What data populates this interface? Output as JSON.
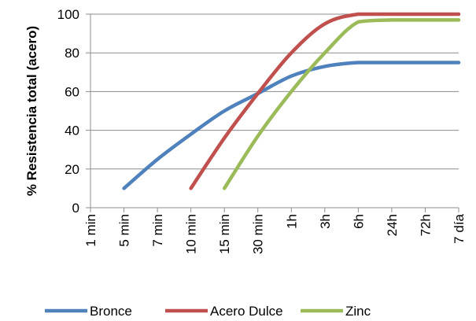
{
  "chart_data": {
    "type": "line",
    "ylabel": "% Resistencia total (acero)",
    "xlabel": "",
    "categories": [
      "1 min",
      "5 min",
      "7 min",
      "10 min",
      "15 min",
      "30 min",
      "1h",
      "3h",
      "6h",
      "24h",
      "72h",
      "7 día"
    ],
    "ylim": [
      0,
      100
    ],
    "yticks": [
      0,
      20,
      40,
      60,
      80,
      100
    ],
    "grid": "horizontal",
    "legend": "bottom",
    "series": [
      {
        "name": "Bronce",
        "color": "#4F81BD",
        "values": [
          null,
          10,
          25,
          38,
          50,
          59,
          68,
          73,
          75,
          75,
          75,
          75
        ]
      },
      {
        "name": "Acero Dulce",
        "color": "#C0504D",
        "values": [
          null,
          null,
          null,
          10,
          36,
          59,
          80,
          95,
          100,
          100,
          100,
          100
        ]
      },
      {
        "name": "Zinc",
        "color": "#9BBB59",
        "values": [
          null,
          null,
          null,
          null,
          10,
          37,
          60,
          80,
          96,
          97,
          97,
          97
        ]
      }
    ]
  }
}
